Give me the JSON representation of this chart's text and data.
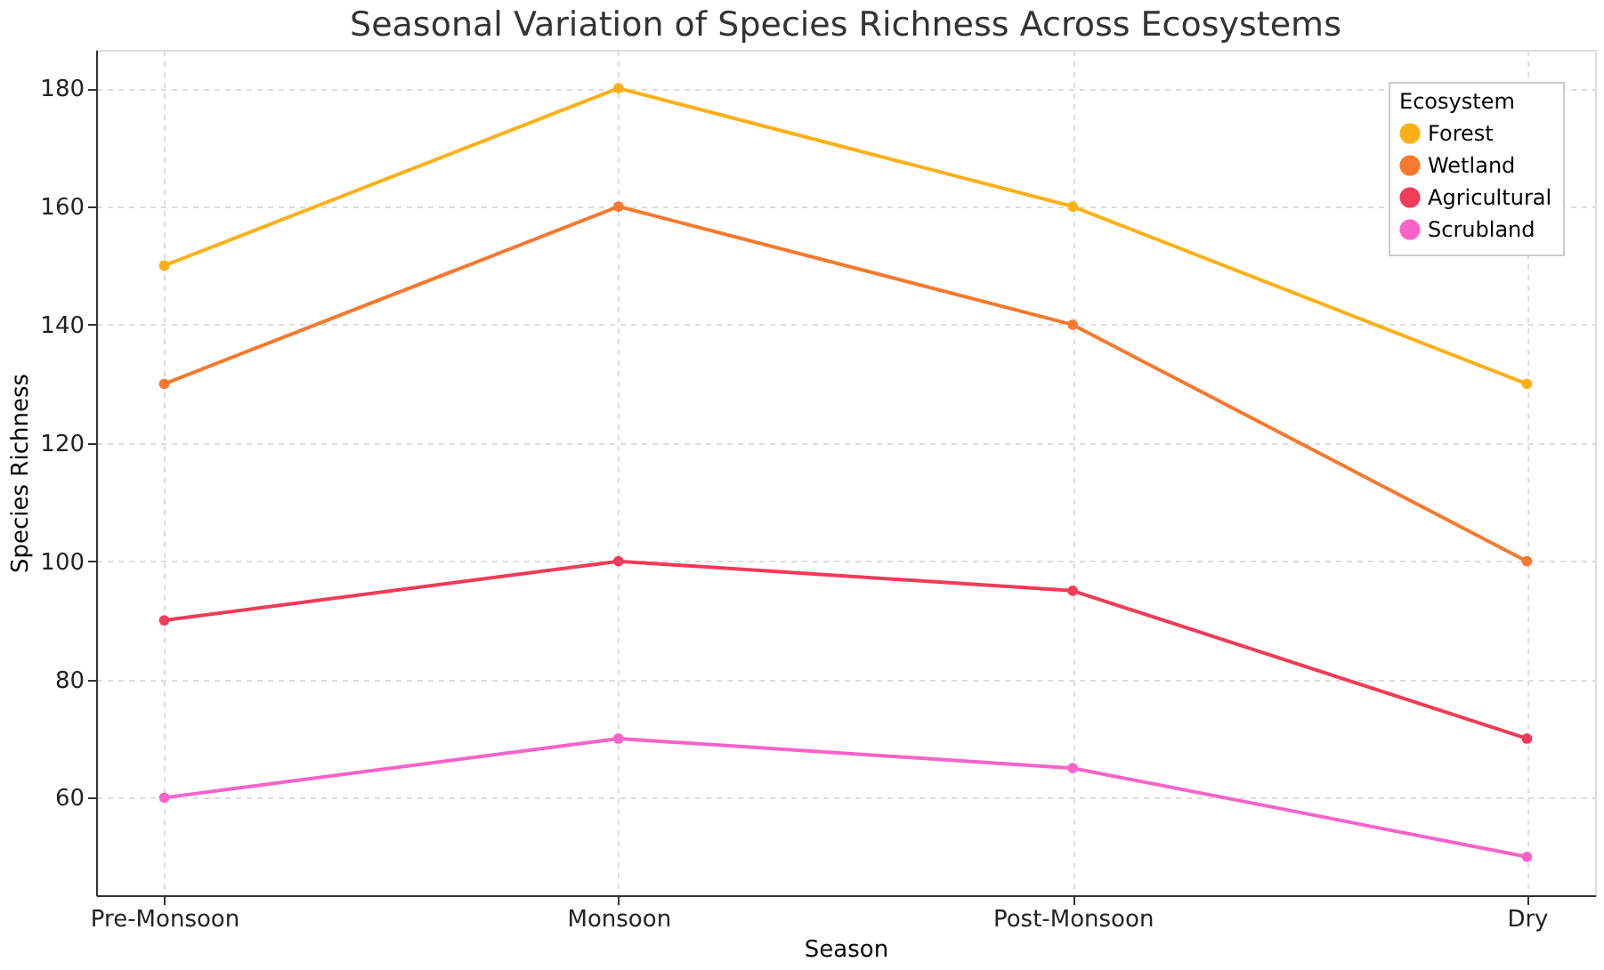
{
  "chart_data": {
    "type": "line",
    "title": "Seasonal Variation of Species Richness Across Ecosystems",
    "xlabel": "Season",
    "ylabel": "Species Richness",
    "legend_title": "Ecosystem",
    "categories": [
      "Pre-Monsoon",
      "Monsoon",
      "Post-Monsoon",
      "Dry"
    ],
    "series": [
      {
        "name": "Forest",
        "color": "#fbb017",
        "values": [
          150,
          180,
          160,
          130
        ]
      },
      {
        "name": "Wetland",
        "color": "#f5792e",
        "values": [
          130,
          160,
          140,
          100
        ]
      },
      {
        "name": "Agricultural",
        "color": "#f13b58",
        "values": [
          90,
          100,
          95,
          70
        ]
      },
      {
        "name": "Scrubland",
        "color": "#f763c9",
        "values": [
          60,
          70,
          65,
          50
        ]
      }
    ],
    "ylim": [
      43.5,
      186.5
    ],
    "yticks": [
      60,
      80,
      100,
      120,
      140,
      160,
      180
    ],
    "grid": true,
    "legend": "top right",
    "marker": "circle",
    "line_style": "solid"
  }
}
